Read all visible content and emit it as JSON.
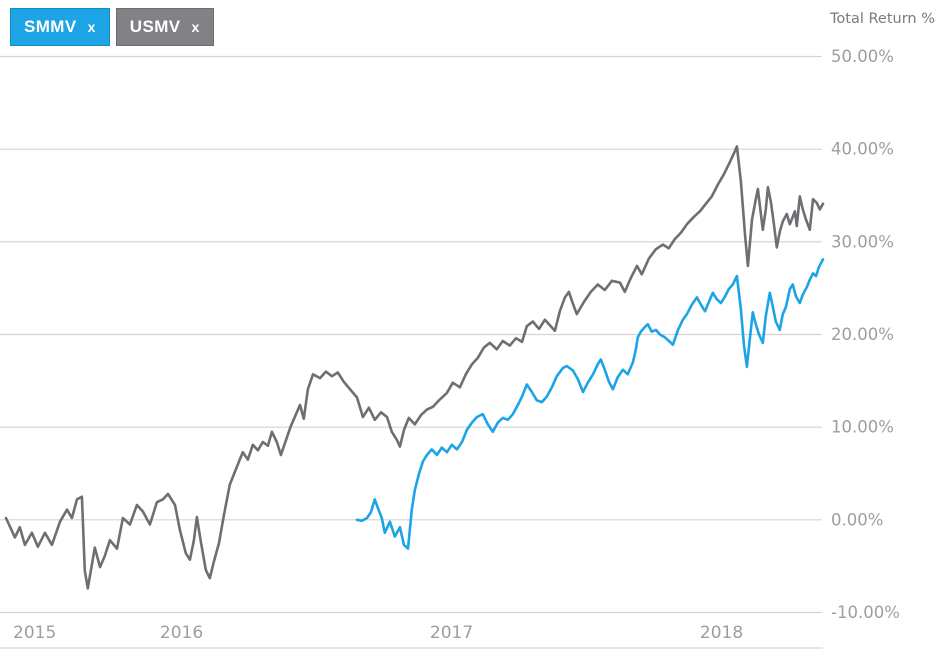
{
  "header": {
    "tags": [
      {
        "label": "SMMV",
        "remove_glyph": "x",
        "color": "#1ca4e6",
        "text_color": "#ffffff"
      },
      {
        "label": "USMV",
        "remove_glyph": "x",
        "color": "#808285",
        "text_color": "#ffffff"
      }
    ],
    "axis_title": "Total Return %"
  },
  "chart_data": {
    "type": "line",
    "title": "Total Return %",
    "grid": "horizontal only",
    "legend_position": "top-left removable ticker tags",
    "x_domain": [
      2015.43,
      2018.456
    ],
    "y_domain": [
      -10,
      50
    ],
    "grid_color": "#d4d4d4",
    "label_color": "#9b9ea3",
    "y_ticks": [
      {
        "value": 50,
        "label": "50.00%"
      },
      {
        "value": 40,
        "label": "40.00%"
      },
      {
        "value": 30,
        "label": "30.00%"
      },
      {
        "value": 20,
        "label": "20.00%"
      },
      {
        "value": 10,
        "label": "10.00%"
      },
      {
        "value": 0,
        "label": "0.00%"
      },
      {
        "value": -10,
        "label": "-10.00%"
      }
    ],
    "x_ticks": [
      {
        "t": 2015.456,
        "label": "2015"
      },
      {
        "t": 2016.0,
        "label": "2016"
      },
      {
        "t": 2017.0,
        "label": "2017"
      },
      {
        "t": 2018.0,
        "label": "2018"
      }
    ],
    "series": [
      {
        "name": "USMV",
        "color": "#6e6f72",
        "points": [
          [
            2015.43,
            0.2
          ],
          [
            2015.463,
            -1.9
          ],
          [
            2015.481,
            -0.8
          ],
          [
            2015.5,
            -2.7
          ],
          [
            2015.526,
            -1.4
          ],
          [
            2015.548,
            -2.9
          ],
          [
            2015.574,
            -1.4
          ],
          [
            2015.6,
            -2.7
          ],
          [
            2015.63,
            -0.2
          ],
          [
            2015.656,
            1.1
          ],
          [
            2015.674,
            0.2
          ],
          [
            2015.693,
            2.2
          ],
          [
            2015.711,
            2.5
          ],
          [
            2015.722,
            -5.5
          ],
          [
            2015.733,
            -7.4
          ],
          [
            2015.759,
            -3.0
          ],
          [
            2015.778,
            -5.1
          ],
          [
            2015.796,
            -3.9
          ],
          [
            2015.815,
            -2.2
          ],
          [
            2015.841,
            -3.1
          ],
          [
            2015.863,
            0.2
          ],
          [
            2015.889,
            -0.5
          ],
          [
            2015.915,
            1.6
          ],
          [
            2015.937,
            0.9
          ],
          [
            2015.963,
            -0.5
          ],
          [
            2015.989,
            1.9
          ],
          [
            2016.011,
            2.2
          ],
          [
            2016.03,
            2.8
          ],
          [
            2016.056,
            1.6
          ],
          [
            2016.074,
            -1.1
          ],
          [
            2016.096,
            -3.6
          ],
          [
            2016.111,
            -4.3
          ],
          [
            2016.126,
            -2.2
          ],
          [
            2016.137,
            0.3
          ],
          [
            2016.152,
            -2.4
          ],
          [
            2016.17,
            -5.4
          ],
          [
            2016.185,
            -6.3
          ],
          [
            2016.2,
            -4.5
          ],
          [
            2016.219,
            -2.5
          ],
          [
            2016.237,
            0.5
          ],
          [
            2016.259,
            3.8
          ],
          [
            2016.285,
            5.7
          ],
          [
            2016.307,
            7.3
          ],
          [
            2016.326,
            6.5
          ],
          [
            2016.344,
            8.1
          ],
          [
            2016.363,
            7.5
          ],
          [
            2016.381,
            8.4
          ],
          [
            2016.4,
            8.0
          ],
          [
            2016.415,
            9.5
          ],
          [
            2016.433,
            8.4
          ],
          [
            2016.448,
            7.0
          ],
          [
            2016.467,
            8.6
          ],
          [
            2016.485,
            10.1
          ],
          [
            2016.504,
            11.4
          ],
          [
            2016.519,
            12.4
          ],
          [
            2016.533,
            10.9
          ],
          [
            2016.548,
            14.1
          ],
          [
            2016.567,
            15.7
          ],
          [
            2016.593,
            15.3
          ],
          [
            2016.615,
            16.0
          ],
          [
            2016.637,
            15.5
          ],
          [
            2016.659,
            15.9
          ],
          [
            2016.681,
            14.9
          ],
          [
            2016.704,
            14.1
          ],
          [
            2016.73,
            13.2
          ],
          [
            2016.752,
            11.1
          ],
          [
            2016.774,
            12.1
          ],
          [
            2016.796,
            10.8
          ],
          [
            2016.819,
            11.6
          ],
          [
            2016.841,
            11.1
          ],
          [
            2016.859,
            9.5
          ],
          [
            2016.878,
            8.6
          ],
          [
            2016.889,
            7.9
          ],
          [
            2016.904,
            9.7
          ],
          [
            2016.922,
            11.0
          ],
          [
            2016.944,
            10.3
          ],
          [
            2016.967,
            11.3
          ],
          [
            2016.989,
            11.9
          ],
          [
            2017.011,
            12.2
          ],
          [
            2017.037,
            13.0
          ],
          [
            2017.063,
            13.7
          ],
          [
            2017.085,
            14.8
          ],
          [
            2017.111,
            14.3
          ],
          [
            2017.133,
            15.7
          ],
          [
            2017.156,
            16.8
          ],
          [
            2017.178,
            17.5
          ],
          [
            2017.2,
            18.6
          ],
          [
            2017.222,
            19.1
          ],
          [
            2017.248,
            18.4
          ],
          [
            2017.27,
            19.3
          ],
          [
            2017.296,
            18.8
          ],
          [
            2017.319,
            19.6
          ],
          [
            2017.341,
            19.2
          ],
          [
            2017.359,
            20.9
          ],
          [
            2017.381,
            21.4
          ],
          [
            2017.404,
            20.6
          ],
          [
            2017.426,
            21.6
          ],
          [
            2017.448,
            20.9
          ],
          [
            2017.463,
            20.4
          ],
          [
            2017.481,
            22.5
          ],
          [
            2017.5,
            24.0
          ],
          [
            2017.515,
            24.6
          ],
          [
            2017.53,
            23.3
          ],
          [
            2017.544,
            22.2
          ],
          [
            2017.57,
            23.5
          ],
          [
            2017.596,
            24.6
          ],
          [
            2017.622,
            25.4
          ],
          [
            2017.648,
            24.8
          ],
          [
            2017.674,
            25.8
          ],
          [
            2017.704,
            25.6
          ],
          [
            2017.722,
            24.6
          ],
          [
            2017.744,
            26.1
          ],
          [
            2017.767,
            27.4
          ],
          [
            2017.785,
            26.5
          ],
          [
            2017.811,
            28.2
          ],
          [
            2017.837,
            29.2
          ],
          [
            2017.863,
            29.7
          ],
          [
            2017.885,
            29.3
          ],
          [
            2017.907,
            30.3
          ],
          [
            2017.93,
            31.0
          ],
          [
            2017.952,
            31.9
          ],
          [
            2017.978,
            32.7
          ],
          [
            2018.0,
            33.3
          ],
          [
            2018.022,
            34.1
          ],
          [
            2018.044,
            34.9
          ],
          [
            2018.067,
            36.2
          ],
          [
            2018.089,
            37.3
          ],
          [
            2018.111,
            38.6
          ],
          [
            2018.13,
            39.8
          ],
          [
            2018.137,
            40.3
          ],
          [
            2018.152,
            36.5
          ],
          [
            2018.167,
            30.8
          ],
          [
            2018.178,
            27.4
          ],
          [
            2018.193,
            32.4
          ],
          [
            2018.207,
            34.6
          ],
          [
            2018.215,
            35.7
          ],
          [
            2018.226,
            33.0
          ],
          [
            2018.233,
            31.3
          ],
          [
            2018.244,
            33.5
          ],
          [
            2018.252,
            35.9
          ],
          [
            2018.263,
            34.3
          ],
          [
            2018.274,
            31.9
          ],
          [
            2018.285,
            29.4
          ],
          [
            2018.296,
            31.1
          ],
          [
            2018.307,
            32.2
          ],
          [
            2018.322,
            33.0
          ],
          [
            2018.333,
            31.9
          ],
          [
            2018.344,
            32.7
          ],
          [
            2018.352,
            33.3
          ],
          [
            2018.359,
            31.7
          ],
          [
            2018.37,
            34.9
          ],
          [
            2018.381,
            33.5
          ],
          [
            2018.393,
            32.4
          ],
          [
            2018.407,
            31.3
          ],
          [
            2018.419,
            34.6
          ],
          [
            2018.433,
            34.2
          ],
          [
            2018.444,
            33.5
          ],
          [
            2018.456,
            34.1
          ]
        ]
      },
      {
        "name": "SMMV",
        "color": "#1ca4e6",
        "points": [
          [
            2016.73,
            0.0
          ],
          [
            2016.748,
            -0.1
          ],
          [
            2016.767,
            0.2
          ],
          [
            2016.781,
            0.8
          ],
          [
            2016.796,
            2.2
          ],
          [
            2016.807,
            1.3
          ],
          [
            2016.822,
            0.2
          ],
          [
            2016.833,
            -1.4
          ],
          [
            2016.852,
            -0.2
          ],
          [
            2016.87,
            -1.8
          ],
          [
            2016.889,
            -0.8
          ],
          [
            2016.904,
            -2.7
          ],
          [
            2016.919,
            -3.1
          ],
          [
            2016.933,
            1.1
          ],
          [
            2016.944,
            3.2
          ],
          [
            2016.959,
            4.9
          ],
          [
            2016.974,
            6.3
          ],
          [
            2016.989,
            7.0
          ],
          [
            2017.007,
            7.6
          ],
          [
            2017.026,
            7.0
          ],
          [
            2017.044,
            7.8
          ],
          [
            2017.063,
            7.3
          ],
          [
            2017.081,
            8.1
          ],
          [
            2017.1,
            7.6
          ],
          [
            2017.119,
            8.4
          ],
          [
            2017.137,
            9.7
          ],
          [
            2017.156,
            10.5
          ],
          [
            2017.174,
            11.1
          ],
          [
            2017.196,
            11.4
          ],
          [
            2017.215,
            10.3
          ],
          [
            2017.233,
            9.5
          ],
          [
            2017.252,
            10.5
          ],
          [
            2017.27,
            11.0
          ],
          [
            2017.289,
            10.8
          ],
          [
            2017.307,
            11.4
          ],
          [
            2017.326,
            12.4
          ],
          [
            2017.341,
            13.3
          ],
          [
            2017.359,
            14.6
          ],
          [
            2017.378,
            13.8
          ],
          [
            2017.396,
            12.9
          ],
          [
            2017.415,
            12.7
          ],
          [
            2017.433,
            13.3
          ],
          [
            2017.452,
            14.3
          ],
          [
            2017.47,
            15.5
          ],
          [
            2017.493,
            16.4
          ],
          [
            2017.507,
            16.6
          ],
          [
            2017.53,
            16.1
          ],
          [
            2017.548,
            15.2
          ],
          [
            2017.567,
            13.8
          ],
          [
            2017.585,
            14.8
          ],
          [
            2017.604,
            15.7
          ],
          [
            2017.622,
            16.8
          ],
          [
            2017.633,
            17.3
          ],
          [
            2017.648,
            16.2
          ],
          [
            2017.663,
            14.9
          ],
          [
            2017.678,
            14.1
          ],
          [
            2017.696,
            15.4
          ],
          [
            2017.715,
            16.2
          ],
          [
            2017.733,
            15.7
          ],
          [
            2017.752,
            17.0
          ],
          [
            2017.763,
            18.4
          ],
          [
            2017.77,
            19.7
          ],
          [
            2017.781,
            20.3
          ],
          [
            2017.796,
            20.8
          ],
          [
            2017.807,
            21.1
          ],
          [
            2017.822,
            20.3
          ],
          [
            2017.837,
            20.5
          ],
          [
            2017.852,
            20.0
          ],
          [
            2017.87,
            19.7
          ],
          [
            2017.889,
            19.2
          ],
          [
            2017.9,
            18.9
          ],
          [
            2017.919,
            20.5
          ],
          [
            2017.937,
            21.6
          ],
          [
            2017.952,
            22.2
          ],
          [
            2017.97,
            23.2
          ],
          [
            2017.989,
            24.0
          ],
          [
            2018.004,
            23.2
          ],
          [
            2018.019,
            22.5
          ],
          [
            2018.033,
            23.5
          ],
          [
            2018.048,
            24.5
          ],
          [
            2018.063,
            23.8
          ],
          [
            2018.078,
            23.4
          ],
          [
            2018.093,
            24.1
          ],
          [
            2018.107,
            24.9
          ],
          [
            2018.122,
            25.4
          ],
          [
            2018.137,
            26.3
          ],
          [
            2018.152,
            22.7
          ],
          [
            2018.163,
            18.9
          ],
          [
            2018.174,
            16.5
          ],
          [
            2018.185,
            19.5
          ],
          [
            2018.196,
            22.4
          ],
          [
            2018.207,
            21.1
          ],
          [
            2018.219,
            20.0
          ],
          [
            2018.233,
            19.1
          ],
          [
            2018.244,
            22.0
          ],
          [
            2018.259,
            24.5
          ],
          [
            2018.27,
            23.0
          ],
          [
            2018.281,
            21.4
          ],
          [
            2018.296,
            20.5
          ],
          [
            2018.307,
            22.2
          ],
          [
            2018.319,
            23.0
          ],
          [
            2018.333,
            24.9
          ],
          [
            2018.344,
            25.4
          ],
          [
            2018.356,
            24.1
          ],
          [
            2018.37,
            23.4
          ],
          [
            2018.381,
            24.3
          ],
          [
            2018.396,
            25.1
          ],
          [
            2018.407,
            25.9
          ],
          [
            2018.419,
            26.6
          ],
          [
            2018.43,
            26.3
          ],
          [
            2018.441,
            27.3
          ],
          [
            2018.456,
            28.1
          ]
        ]
      }
    ]
  }
}
